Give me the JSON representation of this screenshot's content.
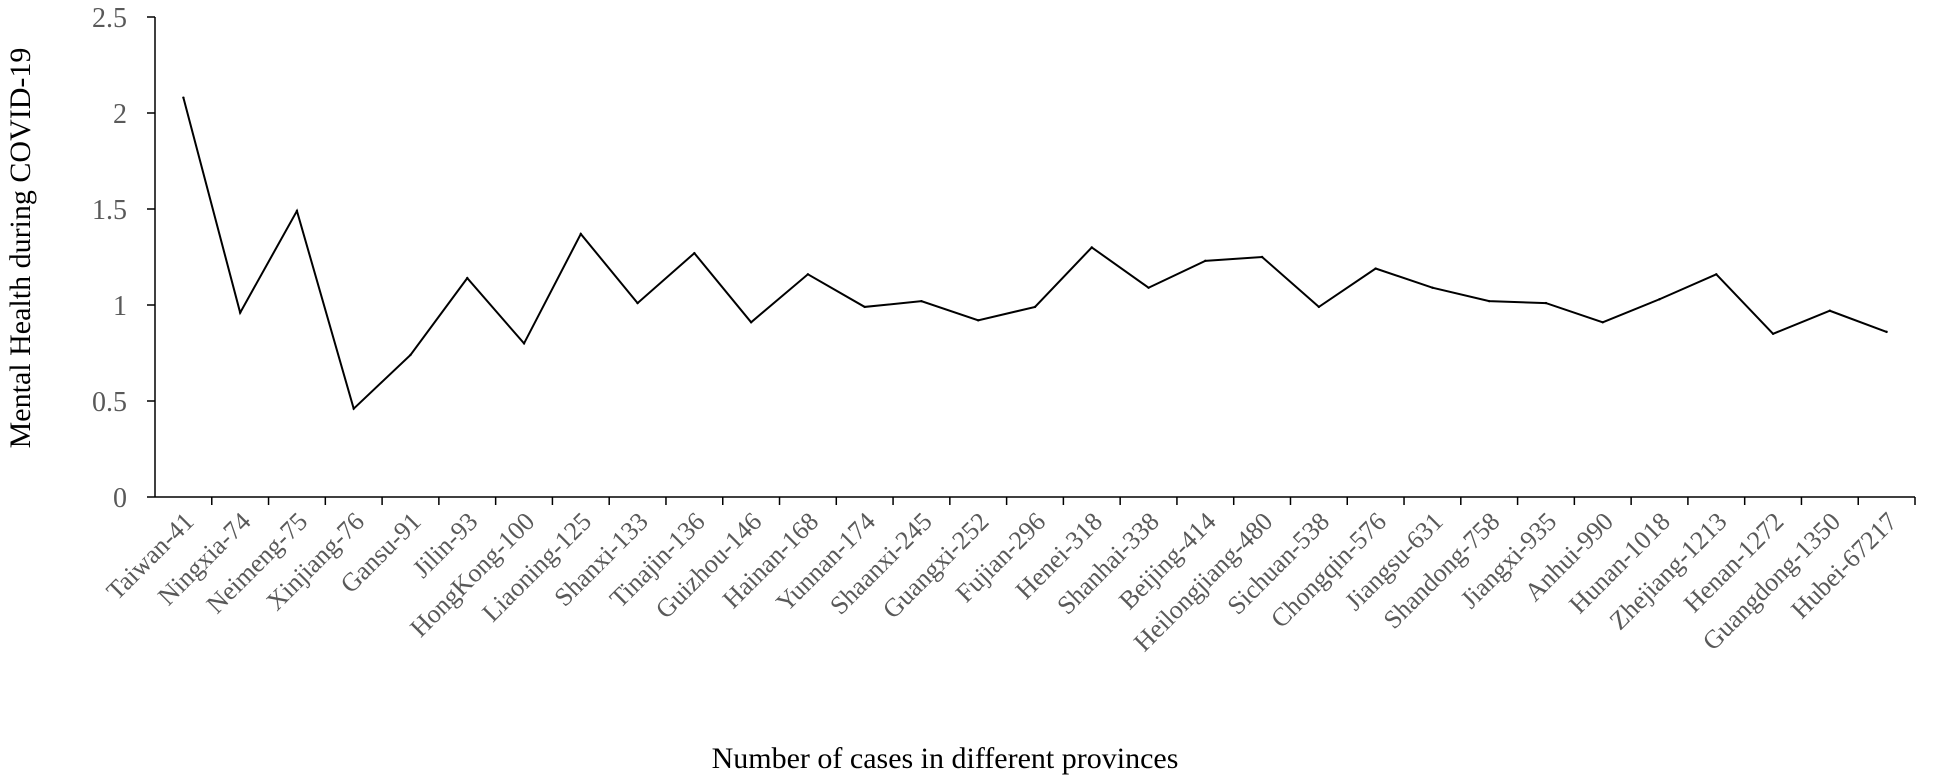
{
  "chart_data": {
    "type": "line",
    "title": "",
    "xlabel": "Number of cases in different provinces",
    "ylabel": "Mental Health during COVID-19",
    "ylim": [
      0,
      2.5
    ],
    "yticks": [
      "0",
      "0.5",
      "1",
      "1.5",
      "2",
      "2.5"
    ],
    "ytick_values": [
      0,
      0.5,
      1,
      1.5,
      2,
      2.5
    ],
    "grid": false,
    "legend": "none",
    "categories": [
      "Taiwan-41",
      "Ningxia-74",
      "Neimeng-75",
      "Xinjiang-76",
      "Gansu-91",
      "Jilin-93",
      "HongKong-100",
      "Liaoning-125",
      "Shanxi-133",
      "Tinajin-136",
      "Guizhou-146",
      "Hainan-168",
      "Yunnan-174",
      "Shaanxi-245",
      "Guangxi-252",
      "Fujian-296",
      "Henei-318",
      "Shanhai-338",
      "Beijing-414",
      "Heilongjiang-480",
      "Sichuan-538",
      "Chongqin-576",
      "Jiangsu-631",
      "Shandong-758",
      "Jiangxi-935",
      "Anhui-990",
      "Hunan-1018",
      "Zhejiang-1213",
      "Henan-1272",
      "Guangdong-1350",
      "Hubei-67217"
    ],
    "series": [
      {
        "name": "Mental Health during COVID-19",
        "color": "#000000",
        "values": [
          2.08,
          0.96,
          1.49,
          0.46,
          0.74,
          1.14,
          0.8,
          1.37,
          1.01,
          1.27,
          0.91,
          1.16,
          0.99,
          1.02,
          0.92,
          0.99,
          1.3,
          1.09,
          1.23,
          1.25,
          0.99,
          1.19,
          1.09,
          1.02,
          1.01,
          0.91,
          1.03,
          1.16,
          0.85,
          0.97,
          0.86
        ]
      }
    ]
  }
}
